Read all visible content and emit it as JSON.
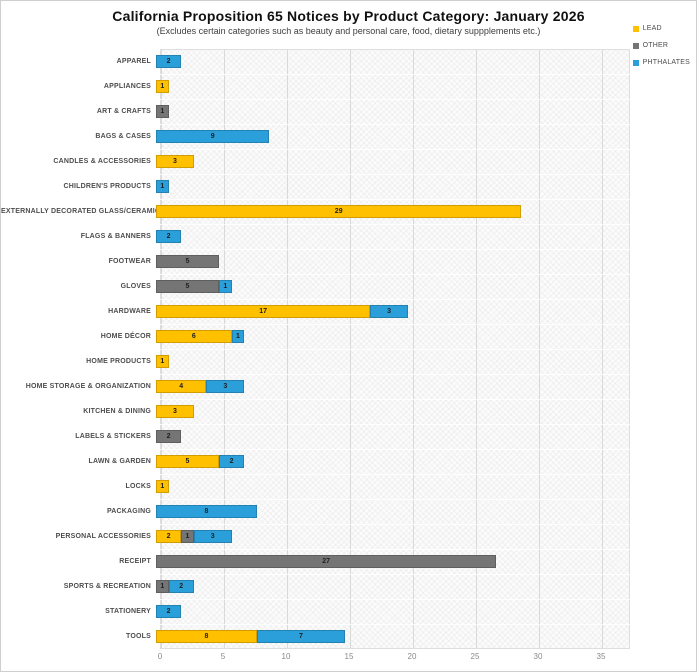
{
  "title": "California Proposition 65 Notices by Product Category: January 2026",
  "subtitle": "(Excludes certain categories such as beauty and personal care, food, dietary suppplements etc.)",
  "colors": {
    "lead": "#FFC000",
    "other": "#757575",
    "phthalates": "#2B9FD9",
    "gridline": "#d9d9d9",
    "value_label": "#1f1f1f"
  },
  "legend": {
    "position": "top-right",
    "items": [
      {
        "label": "LEAD",
        "color": "#FFC000"
      },
      {
        "label": "OTHER",
        "color": "#757575"
      },
      {
        "label": "PHTHALATES",
        "color": "#2B9FD9"
      }
    ]
  },
  "chart_data": {
    "type": "bar",
    "orientation": "horizontal",
    "stacked": true,
    "title": "California Proposition 65 Notices by Product Category: January 2026",
    "subtitle": "(Excludes certain categories such as beauty and personal care, food, dietary suppplements etc.)",
    "xlabel": "",
    "ylabel": "",
    "xlim": [
      0,
      35
    ],
    "x_ticks": [
      0,
      5,
      10,
      15,
      20,
      25,
      30,
      35
    ],
    "grid": true,
    "value_labels": true,
    "categories": [
      "APPAREL",
      "APPLIANCES",
      "ART & CRAFTS",
      "BAGS & CASES",
      "CANDLES & ACCESSORIES",
      "CHILDREN'S PRODUCTS",
      "EXTERNALLY DECORATED GLASS/CERAMICWARE",
      "FLAGS & BANNERS",
      "FOOTWEAR",
      "GLOVES",
      "HARDWARE",
      "HOME DÉCOR",
      "HOME PRODUCTS",
      "HOME STORAGE & ORGANIZATION",
      "KITCHEN & DINING",
      "LABELS & STICKERS",
      "LAWN & GARDEN",
      "LOCKS",
      "PACKAGING",
      "PERSONAL ACCESSORIES",
      "RECEIPT",
      "SPORTS & RECREATION",
      "STATIONERY",
      "TOOLS"
    ],
    "series": [
      {
        "name": "LEAD",
        "color": "#FFC000",
        "values": [
          0,
          1,
          0,
          0,
          3,
          0,
          29,
          0,
          0,
          0,
          17,
          6,
          1,
          4,
          3,
          0,
          5,
          1,
          0,
          2,
          0,
          0,
          0,
          8
        ]
      },
      {
        "name": "OTHER",
        "color": "#757575",
        "values": [
          0,
          0,
          1,
          0,
          0,
          0,
          0,
          0,
          5,
          5,
          0,
          0,
          0,
          0,
          0,
          2,
          0,
          0,
          0,
          1,
          27,
          1,
          0,
          0
        ]
      },
      {
        "name": "PHTHALATES",
        "color": "#2B9FD9",
        "values": [
          2,
          0,
          0,
          9,
          0,
          1,
          0,
          2,
          0,
          1,
          3,
          1,
          0,
          3,
          0,
          0,
          2,
          0,
          8,
          3,
          0,
          2,
          2,
          7
        ]
      }
    ]
  }
}
